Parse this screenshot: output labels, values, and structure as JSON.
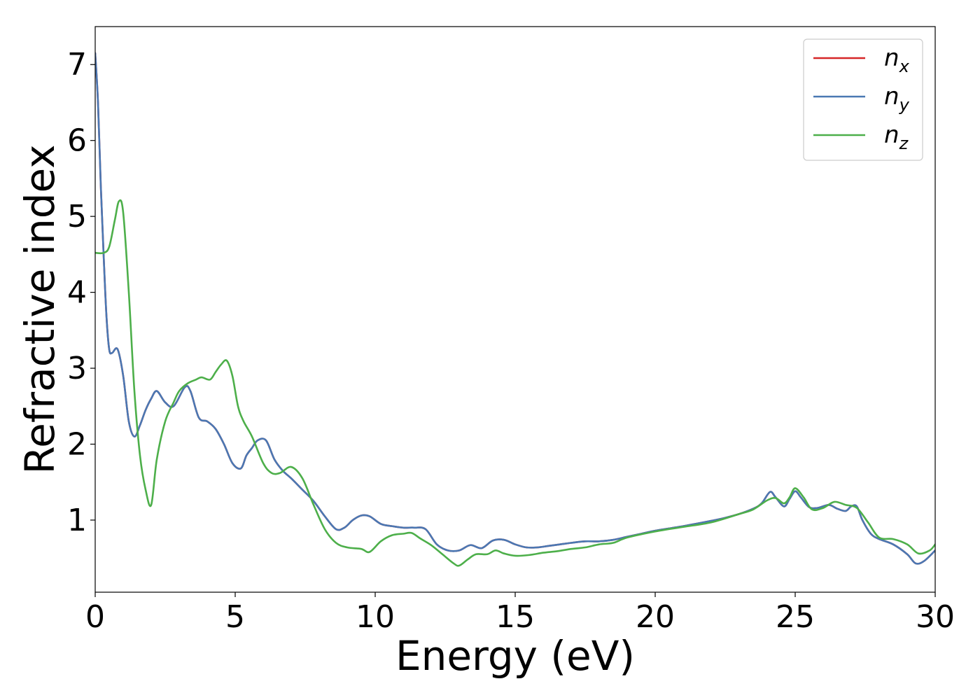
{
  "chart_data": {
    "type": "line",
    "title": "",
    "xlabel": "Energy (eV)",
    "ylabel": "Refractive index",
    "xlim": [
      0,
      30
    ],
    "ylim": [
      0.05,
      7.5
    ],
    "xticks": [
      0,
      5,
      10,
      15,
      20,
      25,
      30
    ],
    "yticks": [
      1,
      2,
      3,
      4,
      5,
      6,
      7
    ],
    "grid": false,
    "legend_position": "top-right",
    "series": [
      {
        "name": "n",
        "subscript": "x",
        "color": "#d62728",
        "x": [
          0,
          0.1,
          0.2,
          0.3,
          0.4,
          0.5,
          0.6,
          0.8,
          1.0,
          1.2,
          1.4,
          1.6,
          1.8,
          2.0,
          2.2,
          2.5,
          2.8,
          3.2,
          3.4,
          3.7,
          4.0,
          4.3,
          4.6,
          4.9,
          5.2,
          5.4,
          5.6,
          5.8,
          6.1,
          6.4,
          6.7,
          7.0,
          7.4,
          7.8,
          8.2,
          8.6,
          8.9,
          9.2,
          9.5,
          9.8,
          10.2,
          10.6,
          11.0,
          11.4,
          11.8,
          12.2,
          12.6,
          13.0,
          13.4,
          13.8,
          14.2,
          14.6,
          15.0,
          15.4,
          15.8,
          16.2,
          16.6,
          17.0,
          17.5,
          18.0,
          18.5,
          19.0,
          19.5,
          20.0,
          21.0,
          22.0,
          22.5,
          23.0,
          23.5,
          23.8,
          24.1,
          24.3,
          24.6,
          24.8,
          25.0,
          25.2,
          25.5,
          25.8,
          26.2,
          26.5,
          26.8,
          27.0,
          27.2,
          27.4,
          27.7,
          28.0,
          28.5,
          29.0,
          29.3,
          29.6,
          30.0
        ],
        "values": [
          7.15,
          6.5,
          5.4,
          4.5,
          3.7,
          3.25,
          3.2,
          3.25,
          2.9,
          2.3,
          2.1,
          2.25,
          2.45,
          2.6,
          2.7,
          2.55,
          2.5,
          2.75,
          2.7,
          2.35,
          2.3,
          2.2,
          2.0,
          1.75,
          1.68,
          1.85,
          1.95,
          2.05,
          2.05,
          1.8,
          1.65,
          1.55,
          1.4,
          1.25,
          1.05,
          0.88,
          0.9,
          1.0,
          1.06,
          1.05,
          0.95,
          0.92,
          0.9,
          0.9,
          0.88,
          0.68,
          0.6,
          0.6,
          0.67,
          0.63,
          0.73,
          0.74,
          0.68,
          0.64,
          0.64,
          0.66,
          0.68,
          0.7,
          0.72,
          0.72,
          0.74,
          0.78,
          0.82,
          0.86,
          0.92,
          0.99,
          1.03,
          1.08,
          1.15,
          1.22,
          1.37,
          1.3,
          1.18,
          1.28,
          1.38,
          1.3,
          1.17,
          1.16,
          1.2,
          1.15,
          1.12,
          1.18,
          1.18,
          1.0,
          0.82,
          0.75,
          0.68,
          0.55,
          0.43,
          0.46,
          0.6
        ]
      },
      {
        "name": "n",
        "subscript": "y",
        "color": "#4a78b3",
        "x": [
          0,
          0.1,
          0.2,
          0.3,
          0.4,
          0.5,
          0.6,
          0.8,
          1.0,
          1.2,
          1.4,
          1.6,
          1.8,
          2.0,
          2.2,
          2.5,
          2.8,
          3.2,
          3.4,
          3.7,
          4.0,
          4.3,
          4.6,
          4.9,
          5.2,
          5.4,
          5.6,
          5.8,
          6.1,
          6.4,
          6.7,
          7.0,
          7.4,
          7.8,
          8.2,
          8.6,
          8.9,
          9.2,
          9.5,
          9.8,
          10.2,
          10.6,
          11.0,
          11.4,
          11.8,
          12.2,
          12.6,
          13.0,
          13.4,
          13.8,
          14.2,
          14.6,
          15.0,
          15.4,
          15.8,
          16.2,
          16.6,
          17.0,
          17.5,
          18.0,
          18.5,
          19.0,
          19.5,
          20.0,
          21.0,
          22.0,
          22.5,
          23.0,
          23.5,
          23.8,
          24.1,
          24.3,
          24.6,
          24.8,
          25.0,
          25.2,
          25.5,
          25.8,
          26.2,
          26.5,
          26.8,
          27.0,
          27.2,
          27.4,
          27.7,
          28.0,
          28.5,
          29.0,
          29.3,
          29.6,
          30.0
        ],
        "values": [
          7.15,
          6.5,
          5.4,
          4.5,
          3.7,
          3.25,
          3.2,
          3.25,
          2.9,
          2.3,
          2.1,
          2.25,
          2.45,
          2.6,
          2.7,
          2.55,
          2.5,
          2.75,
          2.7,
          2.35,
          2.3,
          2.2,
          2.0,
          1.75,
          1.68,
          1.85,
          1.95,
          2.05,
          2.05,
          1.8,
          1.65,
          1.55,
          1.4,
          1.25,
          1.05,
          0.88,
          0.9,
          1.0,
          1.06,
          1.05,
          0.95,
          0.92,
          0.9,
          0.9,
          0.88,
          0.68,
          0.6,
          0.6,
          0.67,
          0.63,
          0.73,
          0.74,
          0.68,
          0.64,
          0.64,
          0.66,
          0.68,
          0.7,
          0.72,
          0.72,
          0.74,
          0.78,
          0.82,
          0.86,
          0.92,
          0.99,
          1.03,
          1.08,
          1.15,
          1.22,
          1.37,
          1.3,
          1.18,
          1.28,
          1.38,
          1.3,
          1.17,
          1.16,
          1.2,
          1.15,
          1.12,
          1.18,
          1.18,
          1.0,
          0.82,
          0.75,
          0.68,
          0.55,
          0.43,
          0.46,
          0.6
        ]
      },
      {
        "name": "n",
        "subscript": "z",
        "color": "#4daf4a",
        "x": [
          0,
          0.3,
          0.5,
          0.7,
          0.85,
          1.0,
          1.2,
          1.4,
          1.6,
          1.8,
          2.0,
          2.2,
          2.5,
          2.8,
          3.0,
          3.3,
          3.6,
          3.8,
          4.1,
          4.3,
          4.5,
          4.7,
          4.9,
          5.1,
          5.3,
          5.6,
          6.0,
          6.3,
          6.6,
          7.0,
          7.4,
          7.8,
          8.2,
          8.6,
          9.0,
          9.5,
          9.8,
          10.2,
          10.6,
          11.0,
          11.3,
          11.6,
          12.0,
          12.4,
          12.8,
          13.0,
          13.3,
          13.6,
          14.0,
          14.3,
          14.6,
          15.0,
          15.5,
          16.0,
          16.5,
          17.0,
          17.5,
          18.0,
          18.5,
          19.0,
          20.0,
          21.0,
          22.0,
          23.0,
          23.5,
          24.0,
          24.3,
          24.6,
          24.8,
          25.0,
          25.3,
          25.6,
          26.0,
          26.4,
          26.8,
          27.2,
          27.6,
          28.0,
          28.5,
          29.0,
          29.4,
          29.8,
          30.0
        ],
        "values": [
          4.52,
          4.52,
          4.6,
          4.95,
          5.2,
          5.05,
          4.0,
          2.7,
          1.85,
          1.4,
          1.2,
          1.8,
          2.3,
          2.55,
          2.7,
          2.8,
          2.85,
          2.88,
          2.85,
          2.95,
          3.05,
          3.1,
          2.9,
          2.5,
          2.3,
          2.1,
          1.75,
          1.62,
          1.62,
          1.7,
          1.55,
          1.2,
          0.88,
          0.7,
          0.64,
          0.62,
          0.58,
          0.72,
          0.8,
          0.82,
          0.83,
          0.76,
          0.67,
          0.55,
          0.43,
          0.4,
          0.48,
          0.55,
          0.55,
          0.6,
          0.56,
          0.53,
          0.54,
          0.57,
          0.59,
          0.62,
          0.64,
          0.68,
          0.7,
          0.77,
          0.85,
          0.91,
          0.97,
          1.08,
          1.14,
          1.26,
          1.29,
          1.22,
          1.3,
          1.42,
          1.3,
          1.14,
          1.16,
          1.24,
          1.2,
          1.16,
          0.97,
          0.77,
          0.75,
          0.68,
          0.56,
          0.6,
          0.68
        ]
      }
    ]
  }
}
